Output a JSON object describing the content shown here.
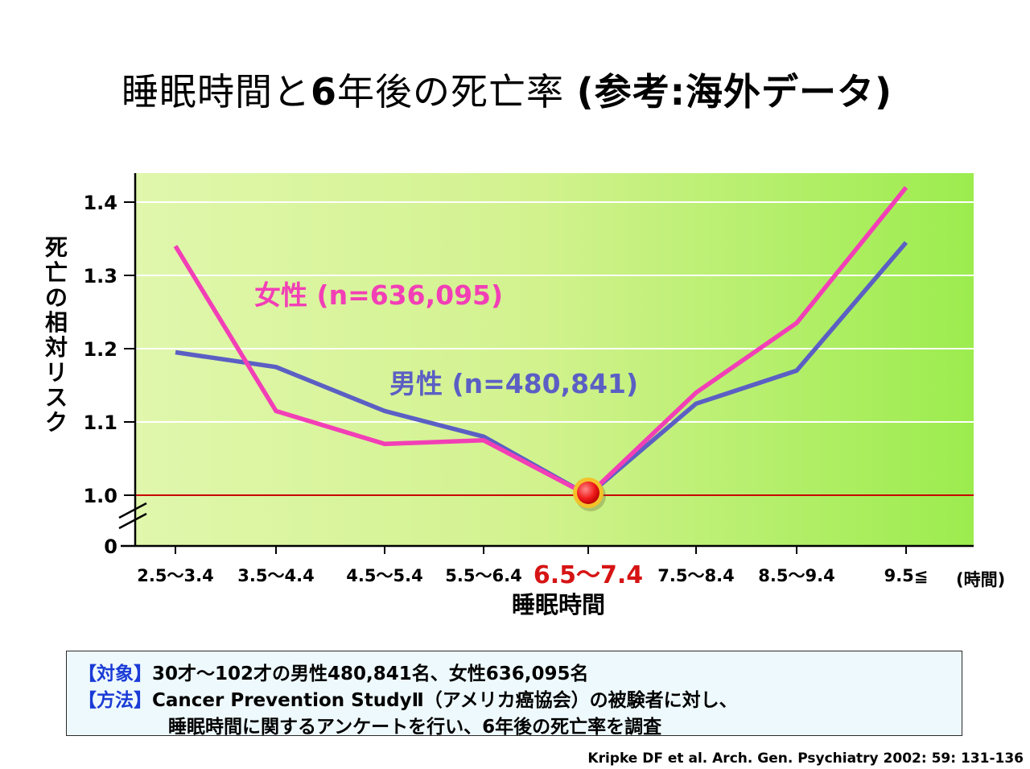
{
  "title": {
    "main": "睡眠時間と",
    "num": "6",
    "mid": "年後の死亡率 ",
    "paren": "(参考:海外データ)"
  },
  "colors": {
    "female": "#f23fb6",
    "male": "#5b5fc4",
    "reference": "#c80000",
    "highlight": "#d61414"
  },
  "chart_data": {
    "type": "line",
    "xlabel": "睡眠時間",
    "x_unit": "(時間)",
    "ylabel": "死亡の相対リスク",
    "categories": [
      "2.5〜3.4",
      "3.5〜4.4",
      "4.5〜5.4",
      "5.5〜6.4",
      "6.5〜7.4",
      "7.5〜8.4",
      "8.5〜9.4",
      "9.5≦"
    ],
    "highlight_category_index": 4,
    "yticks": [
      "0",
      "1.0",
      "1.1",
      "1.2",
      "1.3",
      "1.4"
    ],
    "ylim": [
      1.0,
      1.4
    ],
    "axis_break": true,
    "reference_line": 1.0,
    "grid": true,
    "series": [
      {
        "name": "女性 (n=636,095)",
        "values": [
          1.34,
          1.115,
          1.07,
          1.075,
          1.0,
          1.14,
          1.235,
          1.42
        ]
      },
      {
        "name": "男性 (n=480,841)",
        "values": [
          1.195,
          1.175,
          1.115,
          1.08,
          1.0,
          1.125,
          1.17,
          1.345
        ]
      }
    ]
  },
  "note": {
    "line1_tag": "【対象】",
    "line1_text": "30才〜102才の男性480,841名、女性636,095名",
    "line2_tag": "【方法】",
    "line2_text": "Cancer Prevention StudyⅡ（アメリカ癌協会）の被験者に対し、",
    "line3_text": "睡眠時間に関するアンケートを行い、6年後の死亡率を調査"
  },
  "citation": "Kripke DF et al. Arch. Gen. Psychiatry 2002: 59: 131-136"
}
